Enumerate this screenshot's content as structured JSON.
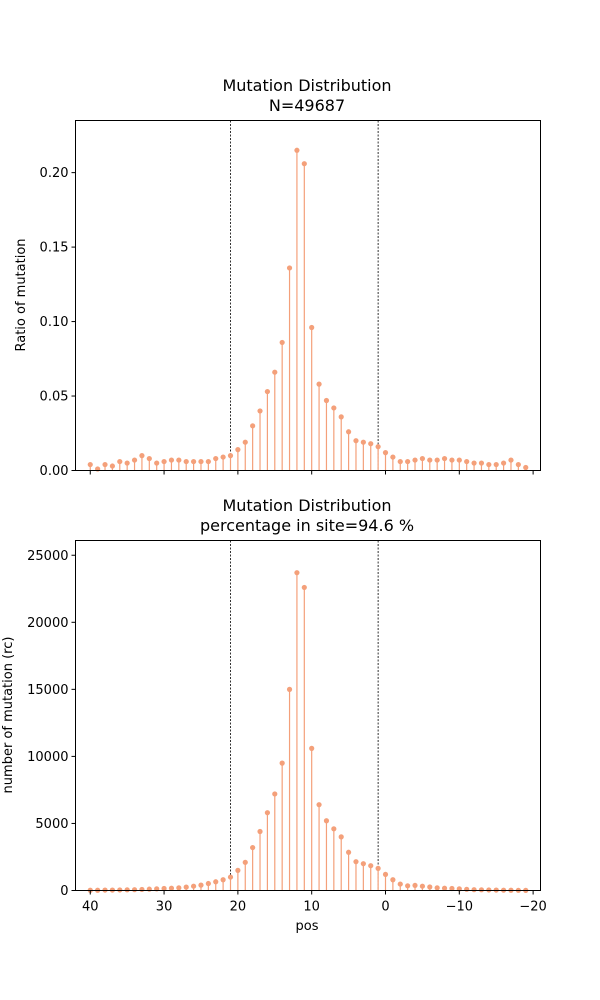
{
  "colors": {
    "stem": "#f4a07a"
  },
  "chart_data": [
    {
      "type": "stem",
      "title": "Mutation Distribution",
      "subtitle": "N=49687",
      "xlabel": "",
      "ylabel": "Ratio of mutation",
      "xlim": [
        42,
        -21
      ],
      "x_inverted": true,
      "ylim": [
        0,
        0.235
      ],
      "yticks": [
        0,
        0.05,
        0.1,
        0.15,
        0.2
      ],
      "ytick_labels": [
        "0.00",
        "0.05",
        "0.10",
        "0.15",
        "0.20"
      ],
      "xticks": [
        40,
        30,
        20,
        10,
        0,
        -10,
        -20
      ],
      "xtick_labels": [],
      "vlines": [
        21,
        1
      ],
      "x": [
        40,
        39,
        38,
        37,
        36,
        35,
        34,
        33,
        32,
        31,
        30,
        29,
        28,
        27,
        26,
        25,
        24,
        23,
        22,
        21,
        20,
        19,
        18,
        17,
        16,
        15,
        14,
        13,
        12,
        11,
        10,
        9,
        8,
        7,
        6,
        5,
        4,
        3,
        2,
        1,
        0,
        -1,
        -2,
        -3,
        -4,
        -5,
        -6,
        -7,
        -8,
        -9,
        -10,
        -11,
        -12,
        -13,
        -14,
        -15,
        -16,
        -17,
        -18,
        -19
      ],
      "values": [
        0.004,
        0.001,
        0.004,
        0.003,
        0.006,
        0.005,
        0.007,
        0.01,
        0.008,
        0.005,
        0.006,
        0.007,
        0.007,
        0.006,
        0.006,
        0.006,
        0.006,
        0.008,
        0.009,
        0.01,
        0.014,
        0.019,
        0.03,
        0.04,
        0.053,
        0.066,
        0.086,
        0.136,
        0.215,
        0.206,
        0.096,
        0.058,
        0.047,
        0.042,
        0.036,
        0.026,
        0.02,
        0.019,
        0.018,
        0.016,
        0.012,
        0.009,
        0.006,
        0.006,
        0.007,
        0.008,
        0.007,
        0.007,
        0.008,
        0.007,
        0.007,
        0.006,
        0.005,
        0.005,
        0.004,
        0.004,
        0.005,
        0.007,
        0.004,
        0.002
      ]
    },
    {
      "type": "stem",
      "title": "Mutation Distribution",
      "subtitle": "percentage in site=94.6 %",
      "xlabel": "pos",
      "ylabel": "number of mutation (rc)",
      "xlim": [
        42,
        -21
      ],
      "x_inverted": true,
      "ylim": [
        0,
        26100
      ],
      "yticks": [
        0,
        5000,
        10000,
        15000,
        20000,
        25000
      ],
      "ytick_labels": [
        "0",
        "5000",
        "10000",
        "15000",
        "20000",
        "25000"
      ],
      "xticks": [
        40,
        30,
        20,
        10,
        0,
        -10,
        -20
      ],
      "xtick_labels": [
        "40",
        "30",
        "20",
        "10",
        "0",
        "−10",
        "−20"
      ],
      "vlines": [
        21,
        1
      ],
      "x": [
        40,
        39,
        38,
        37,
        36,
        35,
        34,
        33,
        32,
        31,
        30,
        29,
        28,
        27,
        26,
        25,
        24,
        23,
        22,
        21,
        20,
        19,
        18,
        17,
        16,
        15,
        14,
        13,
        12,
        11,
        10,
        9,
        8,
        7,
        6,
        5,
        4,
        3,
        2,
        1,
        0,
        -1,
        -2,
        -3,
        -4,
        -5,
        -6,
        -7,
        -8,
        -9,
        -10,
        -11,
        -12,
        -13,
        -14,
        -15,
        -16,
        -17,
        -18,
        -19
      ],
      "values": [
        20,
        20,
        30,
        30,
        40,
        50,
        60,
        80,
        100,
        120,
        150,
        170,
        200,
        250,
        320,
        400,
        520,
        650,
        800,
        1000,
        1500,
        2100,
        3200,
        4400,
        5800,
        7200,
        9500,
        15000,
        23700,
        22600,
        10600,
        6400,
        5200,
        4600,
        4000,
        2850,
        2150,
        2000,
        1850,
        1650,
        1200,
        800,
        480,
        350,
        380,
        320,
        260,
        200,
        170,
        150,
        120,
        90,
        60,
        50,
        40,
        30,
        25,
        20,
        15,
        10
      ]
    }
  ]
}
